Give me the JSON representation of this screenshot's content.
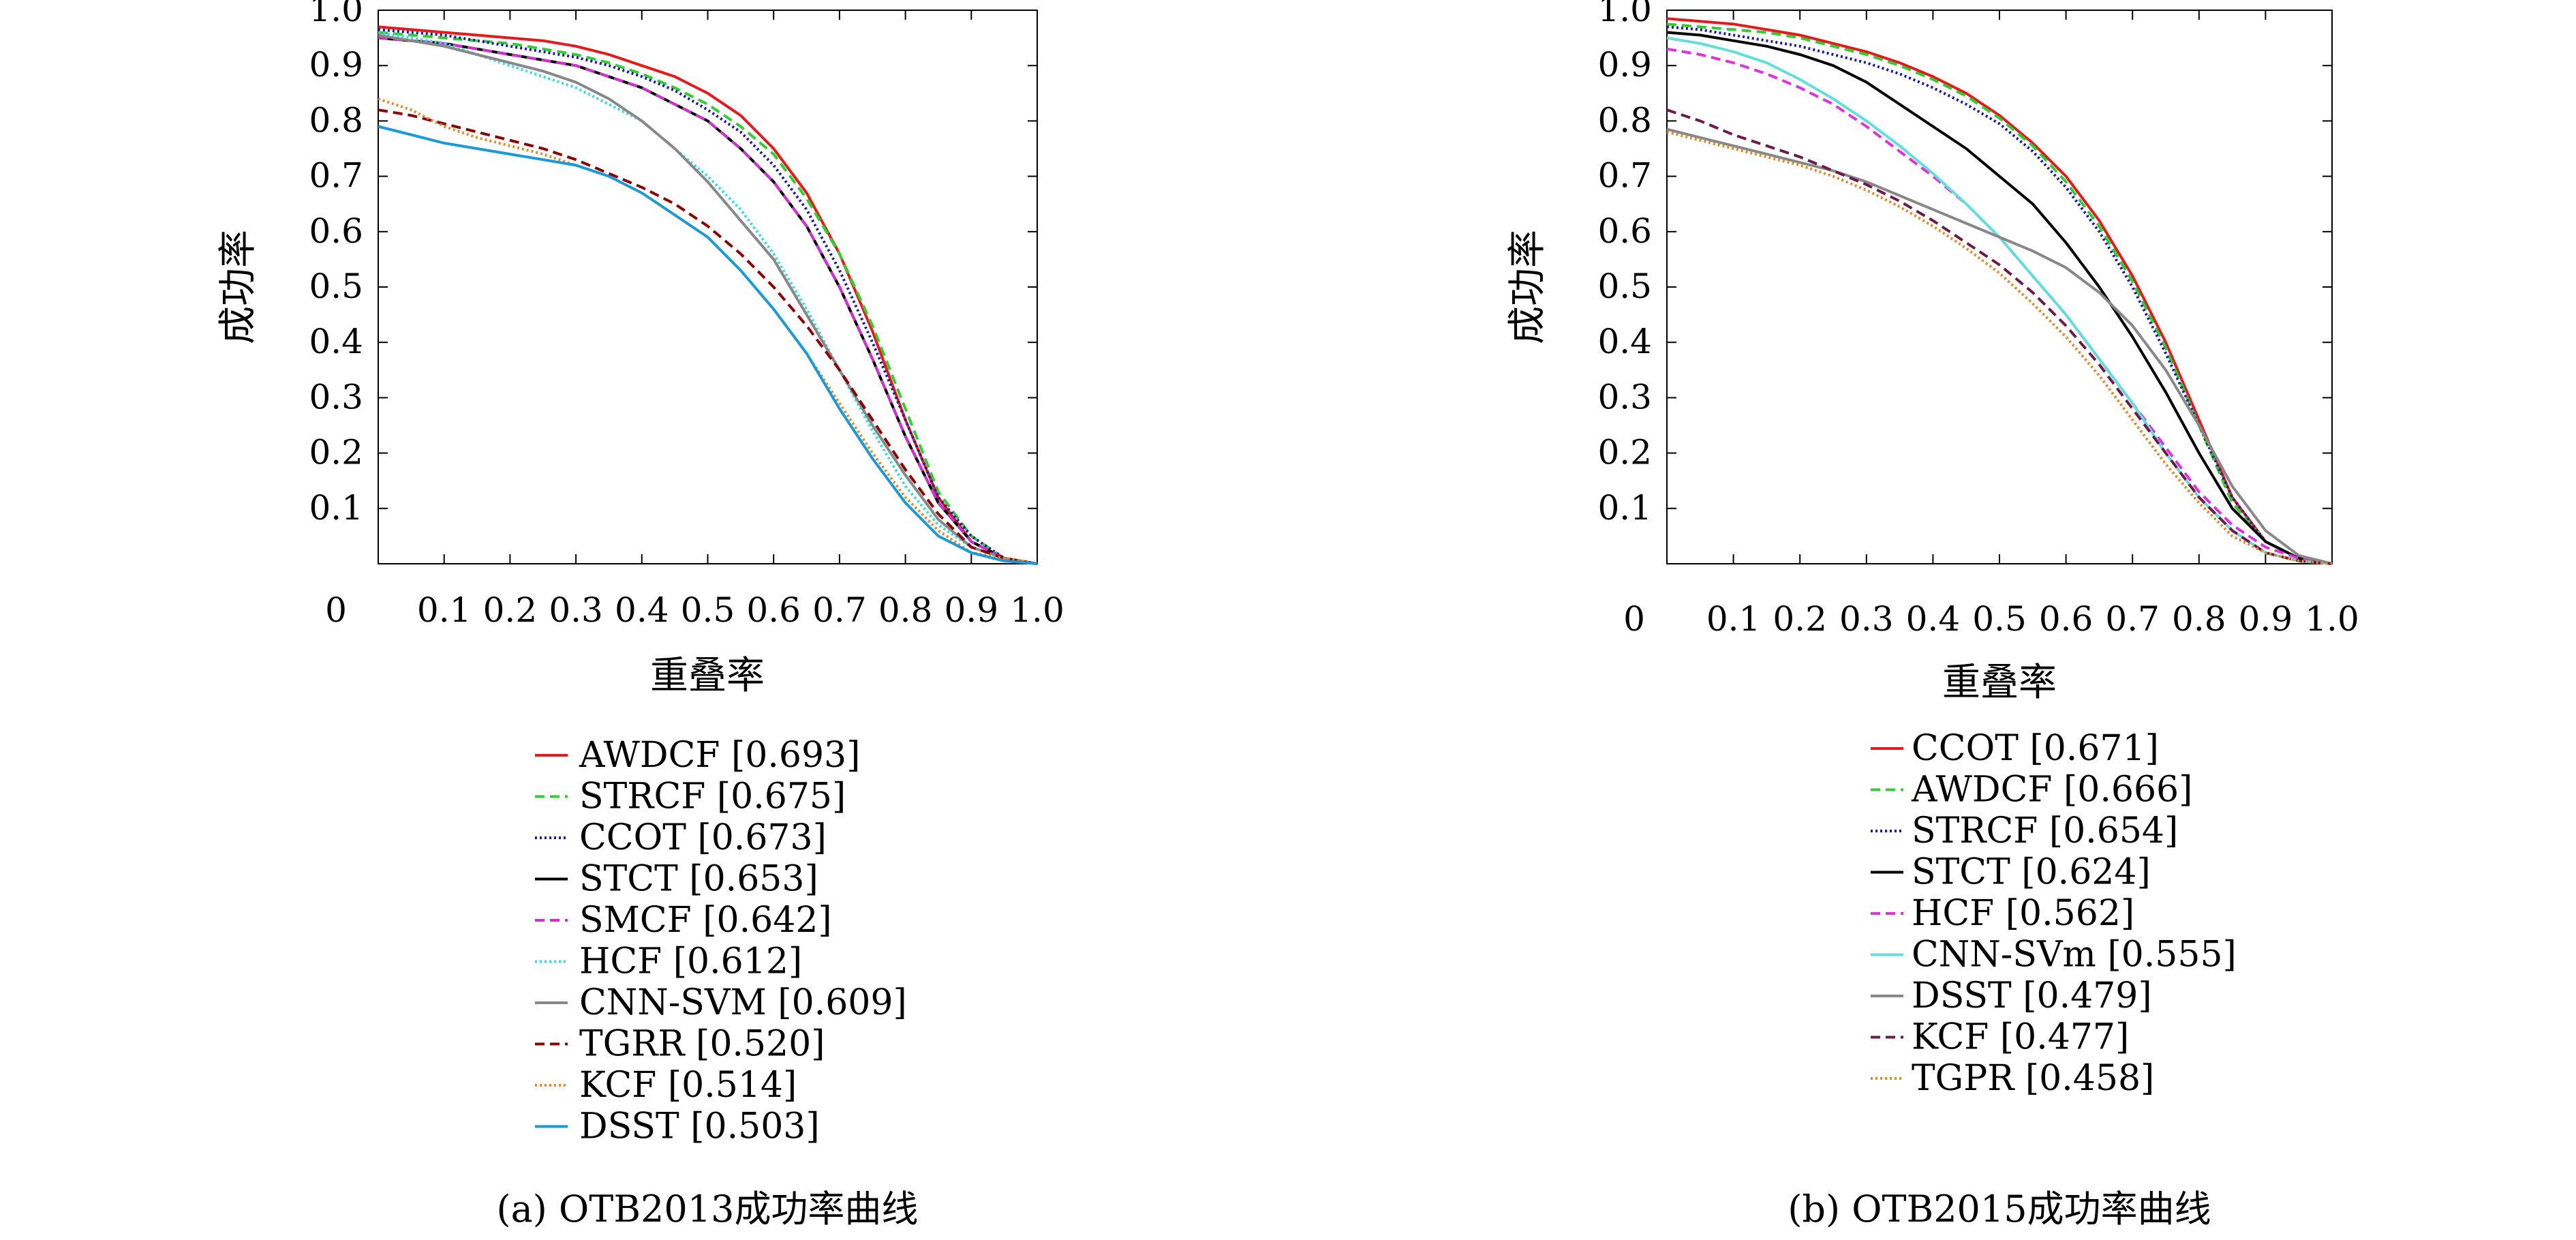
{
  "chart_data": [
    {
      "type": "line",
      "caption": "(a) OTB2013成功率曲线",
      "xlabel": "重叠率",
      "ylabel": "成功率",
      "xlim": [
        0,
        1.0
      ],
      "ylim": [
        0,
        1.0
      ],
      "x_tick_labels": [
        "0",
        "0.1",
        "0.2",
        "0.3",
        "0.4",
        "0.5",
        "0.6",
        "0.7",
        "0.8",
        "0.9",
        "1.0"
      ],
      "y_tick_labels": [
        "0.1",
        "0.2",
        "0.3",
        "0.4",
        "0.5",
        "0.6",
        "0.7",
        "0.8",
        "0.9",
        "1.0"
      ],
      "grid": false,
      "legend_position": "below",
      "x": [
        0,
        0.05,
        0.1,
        0.15,
        0.2,
        0.25,
        0.3,
        0.35,
        0.4,
        0.45,
        0.5,
        0.55,
        0.6,
        0.65,
        0.7,
        0.75,
        0.8,
        0.85,
        0.9,
        0.95,
        1.0
      ],
      "series": [
        {
          "name": "AWDCF [0.693]",
          "color": "#e41a1c",
          "dash": "solid",
          "values": [
            0.97,
            0.965,
            0.96,
            0.955,
            0.95,
            0.945,
            0.935,
            0.92,
            0.9,
            0.88,
            0.85,
            0.81,
            0.75,
            0.67,
            0.56,
            0.42,
            0.26,
            0.12,
            0.04,
            0.01,
            0.0
          ]
        },
        {
          "name": "STRCF [0.675]",
          "color": "#33cc33",
          "dash": "dashed",
          "values": [
            0.96,
            0.955,
            0.95,
            0.945,
            0.94,
            0.93,
            0.92,
            0.905,
            0.885,
            0.86,
            0.83,
            0.79,
            0.74,
            0.66,
            0.56,
            0.43,
            0.28,
            0.13,
            0.05,
            0.01,
            0.0
          ]
        },
        {
          "name": "CCOT [0.673]",
          "color": "#1a1aa6",
          "dash": "dotted",
          "values": [
            0.965,
            0.96,
            0.955,
            0.945,
            0.935,
            0.925,
            0.915,
            0.9,
            0.88,
            0.855,
            0.82,
            0.78,
            0.72,
            0.64,
            0.53,
            0.4,
            0.26,
            0.12,
            0.05,
            0.01,
            0.0
          ]
        },
        {
          "name": "STCT [0.653]",
          "color": "#000000",
          "dash": "solid",
          "values": [
            0.95,
            0.945,
            0.94,
            0.93,
            0.92,
            0.91,
            0.9,
            0.88,
            0.86,
            0.83,
            0.8,
            0.75,
            0.69,
            0.61,
            0.5,
            0.37,
            0.23,
            0.11,
            0.04,
            0.01,
            0.0
          ]
        },
        {
          "name": "SMCF [0.642]",
          "color": "#cc33cc",
          "dash": "dashed",
          "values": [
            0.95,
            0.945,
            0.94,
            0.93,
            0.92,
            0.91,
            0.9,
            0.88,
            0.86,
            0.83,
            0.8,
            0.75,
            0.69,
            0.61,
            0.5,
            0.37,
            0.23,
            0.11,
            0.04,
            0.01,
            0.0
          ]
        },
        {
          "name": "HCF [0.612]",
          "color": "#33dddd",
          "dash": "dotted",
          "values": [
            0.96,
            0.95,
            0.94,
            0.92,
            0.9,
            0.88,
            0.86,
            0.83,
            0.8,
            0.75,
            0.7,
            0.64,
            0.56,
            0.46,
            0.35,
            0.24,
            0.14,
            0.07,
            0.03,
            0.01,
            0.0
          ]
        },
        {
          "name": "CNN-SVM [0.609]",
          "color": "#888888",
          "dash": "solid",
          "values": [
            0.955,
            0.945,
            0.935,
            0.92,
            0.905,
            0.89,
            0.87,
            0.84,
            0.8,
            0.75,
            0.69,
            0.62,
            0.55,
            0.45,
            0.35,
            0.25,
            0.16,
            0.08,
            0.03,
            0.01,
            0.0
          ]
        },
        {
          "name": "TGRR [0.520]",
          "color": "#8b0000",
          "dash": "dashed",
          "values": [
            0.82,
            0.81,
            0.795,
            0.78,
            0.765,
            0.75,
            0.73,
            0.705,
            0.68,
            0.65,
            0.61,
            0.56,
            0.5,
            0.43,
            0.35,
            0.26,
            0.17,
            0.09,
            0.03,
            0.01,
            0.0
          ]
        },
        {
          "name": "KCF [0.514]",
          "color": "#e08a2a",
          "dash": "dotted",
          "values": [
            0.84,
            0.82,
            0.79,
            0.77,
            0.755,
            0.74,
            0.72,
            0.7,
            0.67,
            0.63,
            0.59,
            0.53,
            0.46,
            0.38,
            0.29,
            0.2,
            0.12,
            0.06,
            0.02,
            0.01,
            0.0
          ]
        },
        {
          "name": "DSST [0.503]",
          "color": "#1a9ad6",
          "dash": "solid",
          "values": [
            0.79,
            0.775,
            0.76,
            0.75,
            0.74,
            0.73,
            0.72,
            0.7,
            0.67,
            0.63,
            0.59,
            0.53,
            0.46,
            0.38,
            0.28,
            0.19,
            0.11,
            0.05,
            0.02,
            0.005,
            0.0
          ]
        }
      ]
    },
    {
      "type": "line",
      "caption": "(b) OTB2015成功率曲线",
      "xlabel": "重叠率",
      "ylabel": "成功率",
      "xlim": [
        0,
        1.0
      ],
      "ylim": [
        0,
        1.0
      ],
      "x_tick_labels": [
        "0",
        "0.1",
        "0.2",
        "0.3",
        "0.4",
        "0.5",
        "0.6",
        "0.7",
        "0.8",
        "0.9",
        "1.0"
      ],
      "y_tick_labels": [
        "0.1",
        "0.2",
        "0.3",
        "0.4",
        "0.5",
        "0.6",
        "0.7",
        "0.8",
        "0.9",
        "1.0"
      ],
      "grid": false,
      "legend_position": "below",
      "x": [
        0,
        0.05,
        0.1,
        0.15,
        0.2,
        0.25,
        0.3,
        0.35,
        0.4,
        0.45,
        0.5,
        0.55,
        0.6,
        0.65,
        0.7,
        0.75,
        0.8,
        0.85,
        0.9,
        0.95,
        1.0
      ],
      "series": [
        {
          "name": "CCOT [0.671]",
          "color": "#e41a1c",
          "dash": "solid",
          "values": [
            0.985,
            0.98,
            0.975,
            0.965,
            0.955,
            0.94,
            0.925,
            0.905,
            0.88,
            0.85,
            0.81,
            0.76,
            0.7,
            0.62,
            0.52,
            0.4,
            0.26,
            0.12,
            0.04,
            0.01,
            0.0
          ]
        },
        {
          "name": "AWDCF [0.666]",
          "color": "#33cc33",
          "dash": "dashed",
          "values": [
            0.975,
            0.97,
            0.965,
            0.96,
            0.95,
            0.935,
            0.92,
            0.9,
            0.875,
            0.845,
            0.805,
            0.755,
            0.69,
            0.61,
            0.51,
            0.39,
            0.25,
            0.11,
            0.04,
            0.01,
            0.0
          ]
        },
        {
          "name": "STRCF [0.654]",
          "color": "#1a1aa6",
          "dash": "dotted",
          "values": [
            0.97,
            0.965,
            0.955,
            0.945,
            0.935,
            0.92,
            0.905,
            0.885,
            0.86,
            0.83,
            0.795,
            0.745,
            0.68,
            0.6,
            0.5,
            0.38,
            0.25,
            0.12,
            0.04,
            0.01,
            0.0
          ]
        },
        {
          "name": "STCT [0.624]",
          "color": "#000000",
          "dash": "solid",
          "values": [
            0.96,
            0.955,
            0.945,
            0.935,
            0.92,
            0.9,
            0.87,
            0.83,
            0.79,
            0.75,
            0.7,
            0.65,
            0.58,
            0.5,
            0.41,
            0.31,
            0.2,
            0.1,
            0.04,
            0.01,
            0.0
          ]
        },
        {
          "name": "HCF [0.562]",
          "color": "#dd33dd",
          "dash": "dashed",
          "values": [
            0.93,
            0.92,
            0.905,
            0.885,
            0.86,
            0.83,
            0.79,
            0.745,
            0.7,
            0.65,
            0.59,
            0.52,
            0.45,
            0.37,
            0.29,
            0.21,
            0.13,
            0.07,
            0.03,
            0.01,
            0.0
          ]
        },
        {
          "name": "CNN-SVm [0.555]",
          "color": "#66dddd",
          "dash": "solid",
          "values": [
            0.95,
            0.94,
            0.925,
            0.905,
            0.875,
            0.84,
            0.8,
            0.755,
            0.705,
            0.65,
            0.59,
            0.52,
            0.45,
            0.37,
            0.29,
            0.2,
            0.12,
            0.06,
            0.02,
            0.005,
            0.0
          ]
        },
        {
          "name": "DSST [0.479]",
          "color": "#888888",
          "dash": "solid",
          "values": [
            0.785,
            0.77,
            0.755,
            0.74,
            0.725,
            0.71,
            0.69,
            0.665,
            0.64,
            0.615,
            0.59,
            0.565,
            0.535,
            0.49,
            0.43,
            0.35,
            0.25,
            0.14,
            0.06,
            0.015,
            0.0
          ]
        },
        {
          "name": "KCF [0.477]",
          "color": "#6b1a4a",
          "dash": "dashed",
          "values": [
            0.82,
            0.8,
            0.775,
            0.755,
            0.735,
            0.71,
            0.685,
            0.655,
            0.62,
            0.58,
            0.54,
            0.49,
            0.43,
            0.36,
            0.28,
            0.2,
            0.12,
            0.06,
            0.02,
            0.005,
            0.0
          ]
        },
        {
          "name": "TGPR [0.458]",
          "color": "#e08a2a",
          "dash": "dotted",
          "values": [
            0.78,
            0.765,
            0.75,
            0.735,
            0.72,
            0.7,
            0.675,
            0.645,
            0.61,
            0.57,
            0.525,
            0.47,
            0.41,
            0.34,
            0.26,
            0.18,
            0.11,
            0.05,
            0.02,
            0.005,
            0.0
          ]
        }
      ]
    }
  ]
}
